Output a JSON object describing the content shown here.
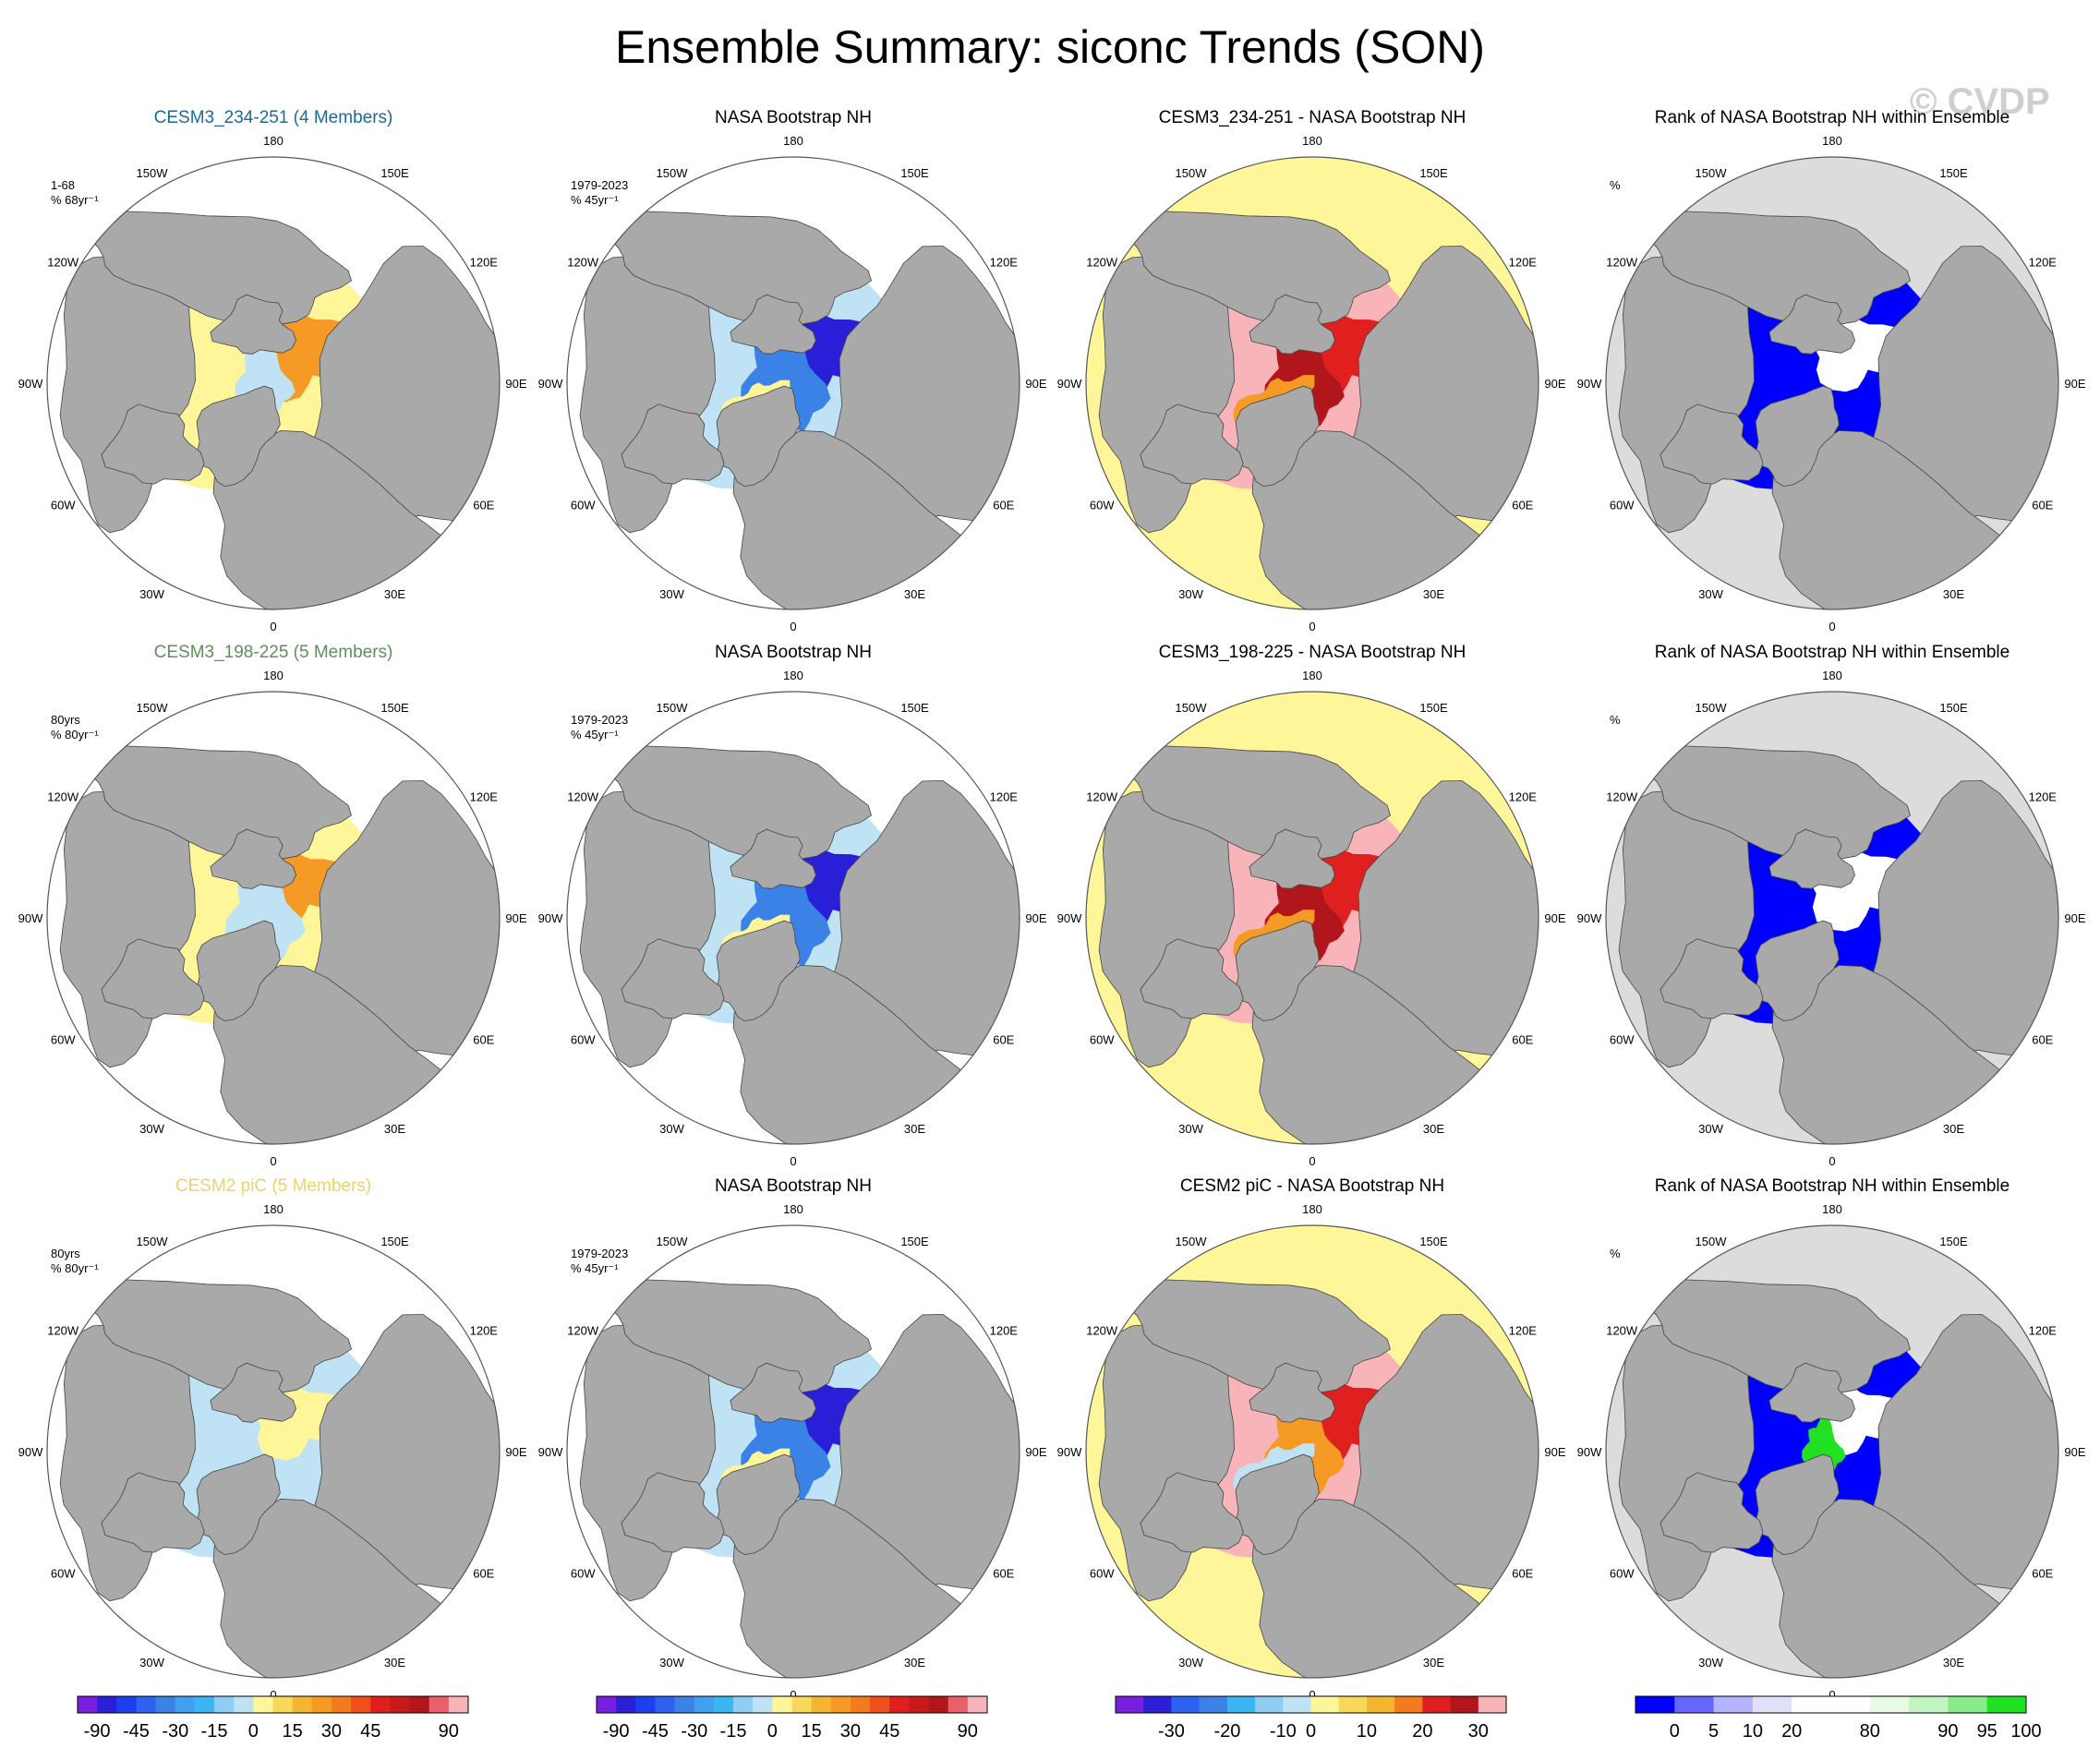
{
  "title": "Ensemble Summary: siconc Trends (SON)",
  "watermark": "© CVDP",
  "colors": {
    "land": "#a9a9a9",
    "outside": "#dcdcdc",
    "yellow": "#fff69a",
    "lightblue": "#bfe2f5",
    "pink": "#f8b4b8",
    "red": "#e01f1f",
    "darkred": "#b0161c",
    "orange": "#f59a25",
    "blue": "#0000ff",
    "darkblue": "#2a1fd8",
    "midblue": "#3b82e6",
    "green": "#22e022",
    "white": "#ffffff"
  },
  "lon_labels": [
    "180",
    "150E",
    "120E",
    "90E",
    "60E",
    "30E",
    "0",
    "30W",
    "60W",
    "90W",
    "120W",
    "150W"
  ],
  "chart_data": [
    {
      "type": "map",
      "row": 0,
      "col": 0,
      "title": "CESM3_234-251 (4 Members)",
      "title_color": "#1a6a9a",
      "note1": "1-68",
      "note2": "% 68yr⁻¹",
      "scheme": "model-a"
    },
    {
      "type": "map",
      "row": 0,
      "col": 1,
      "title": "NASA Bootstrap NH",
      "title_color": "#000000",
      "note1": "1979-2023",
      "note2": "% 45yr⁻¹",
      "scheme": "obs"
    },
    {
      "type": "map",
      "row": 0,
      "col": 2,
      "title": "CESM3_234-251 - NASA Bootstrap NH",
      "title_color": "#000000",
      "note1": "",
      "note2": "",
      "scheme": "diff"
    },
    {
      "type": "map",
      "row": 0,
      "col": 3,
      "title": "Rank of NASA Bootstrap NH within Ensemble",
      "title_color": "#000000",
      "note1": "%",
      "note2": "",
      "scheme": "rank-a"
    },
    {
      "type": "map",
      "row": 1,
      "col": 0,
      "title": "CESM3_198-225 (5 Members)",
      "title_color": "#5f8f5f",
      "note1": "80yrs",
      "note2": "% 80yr⁻¹",
      "scheme": "model-b"
    },
    {
      "type": "map",
      "row": 1,
      "col": 1,
      "title": "NASA Bootstrap NH",
      "title_color": "#000000",
      "note1": "1979-2023",
      "note2": "% 45yr⁻¹",
      "scheme": "obs"
    },
    {
      "type": "map",
      "row": 1,
      "col": 2,
      "title": "CESM3_198-225 - NASA Bootstrap NH",
      "title_color": "#000000",
      "note1": "",
      "note2": "",
      "scheme": "diff"
    },
    {
      "type": "map",
      "row": 1,
      "col": 3,
      "title": "Rank of NASA Bootstrap NH within Ensemble",
      "title_color": "#000000",
      "note1": "%",
      "note2": "",
      "scheme": "rank-b"
    },
    {
      "type": "map",
      "row": 2,
      "col": 0,
      "title": "CESM2 piC (5 Members)",
      "title_color": "#e8d56a",
      "note1": "80yrs",
      "note2": "% 80yr⁻¹",
      "scheme": "model-c"
    },
    {
      "type": "map",
      "row": 2,
      "col": 1,
      "title": "NASA Bootstrap NH",
      "title_color": "#000000",
      "note1": "1979-2023",
      "note2": "% 45yr⁻¹",
      "scheme": "obs"
    },
    {
      "type": "map",
      "row": 2,
      "col": 2,
      "title": "CESM2 piC - NASA Bootstrap NH",
      "title_color": "#000000",
      "note1": "",
      "note2": "",
      "scheme": "diff-c"
    },
    {
      "type": "map",
      "row": 2,
      "col": 3,
      "title": "Rank of NASA Bootstrap NH within Ensemble",
      "title_color": "#000000",
      "note1": "%",
      "note2": "",
      "scheme": "rank-c"
    }
  ],
  "colorbars": [
    {
      "type": "colorbar",
      "name": "trend-colorbar-1",
      "colors": [
        "#7a1fe0",
        "#2c1fd8",
        "#1e3ff0",
        "#2e62f0",
        "#3b82e6",
        "#41a0ef",
        "#3bb6f2",
        "#8fcdf2",
        "#bfe2f5",
        "#fff69a",
        "#f8d85a",
        "#f5b531",
        "#f59a25",
        "#f27b1e",
        "#ef4f1a",
        "#e01f1f",
        "#c81a1a",
        "#b0161c",
        "#e8606a",
        "#f8b4b8"
      ],
      "ticks": [
        "-90",
        "-45",
        "-30",
        "-15",
        "0",
        "15",
        "30",
        "45",
        "90"
      ],
      "tick_slots": [
        1,
        3,
        5,
        7,
        9,
        11,
        13,
        15,
        19
      ]
    },
    {
      "type": "colorbar",
      "name": "trend-colorbar-2",
      "colors": [
        "#7a1fe0",
        "#2c1fd8",
        "#1e3ff0",
        "#2e62f0",
        "#3b82e6",
        "#41a0ef",
        "#3bb6f2",
        "#8fcdf2",
        "#bfe2f5",
        "#fff69a",
        "#f8d85a",
        "#f5b531",
        "#f59a25",
        "#f27b1e",
        "#ef4f1a",
        "#e01f1f",
        "#c81a1a",
        "#b0161c",
        "#e8606a",
        "#f8b4b8"
      ],
      "ticks": [
        "-90",
        "-45",
        "-30",
        "-15",
        "0",
        "15",
        "30",
        "45",
        "90"
      ],
      "tick_slots": [
        1,
        3,
        5,
        7,
        9,
        11,
        13,
        15,
        19
      ]
    },
    {
      "type": "colorbar",
      "name": "difference-colorbar",
      "colors": [
        "#7a1fe0",
        "#2c1fd8",
        "#2e62f0",
        "#3b82e6",
        "#3bb6f2",
        "#8fcdf2",
        "#bfe2f5",
        "#fff69a",
        "#f8d85a",
        "#f5b531",
        "#f27b1e",
        "#e01f1f",
        "#b0161c",
        "#f8b4b8"
      ],
      "ticks": [
        "-30",
        "-20",
        "-10",
        "0",
        "10",
        "20",
        "30"
      ],
      "tick_slots": [
        2,
        4,
        6,
        7,
        9,
        11,
        13
      ]
    },
    {
      "type": "colorbar",
      "name": "rank-colorbar",
      "colors": [
        "#0000ff",
        "#6666ff",
        "#b3b3ff",
        "#e0e0f8",
        "#ffffff",
        "#ffffff",
        "#e6fae6",
        "#c2f5c2",
        "#88ec88",
        "#22e022"
      ],
      "ticks": [
        "0",
        "5",
        "10",
        "20",
        "80",
        "90",
        "95",
        "100"
      ],
      "tick_slots": [
        1,
        2,
        3,
        4,
        6,
        8,
        9,
        10
      ]
    }
  ]
}
